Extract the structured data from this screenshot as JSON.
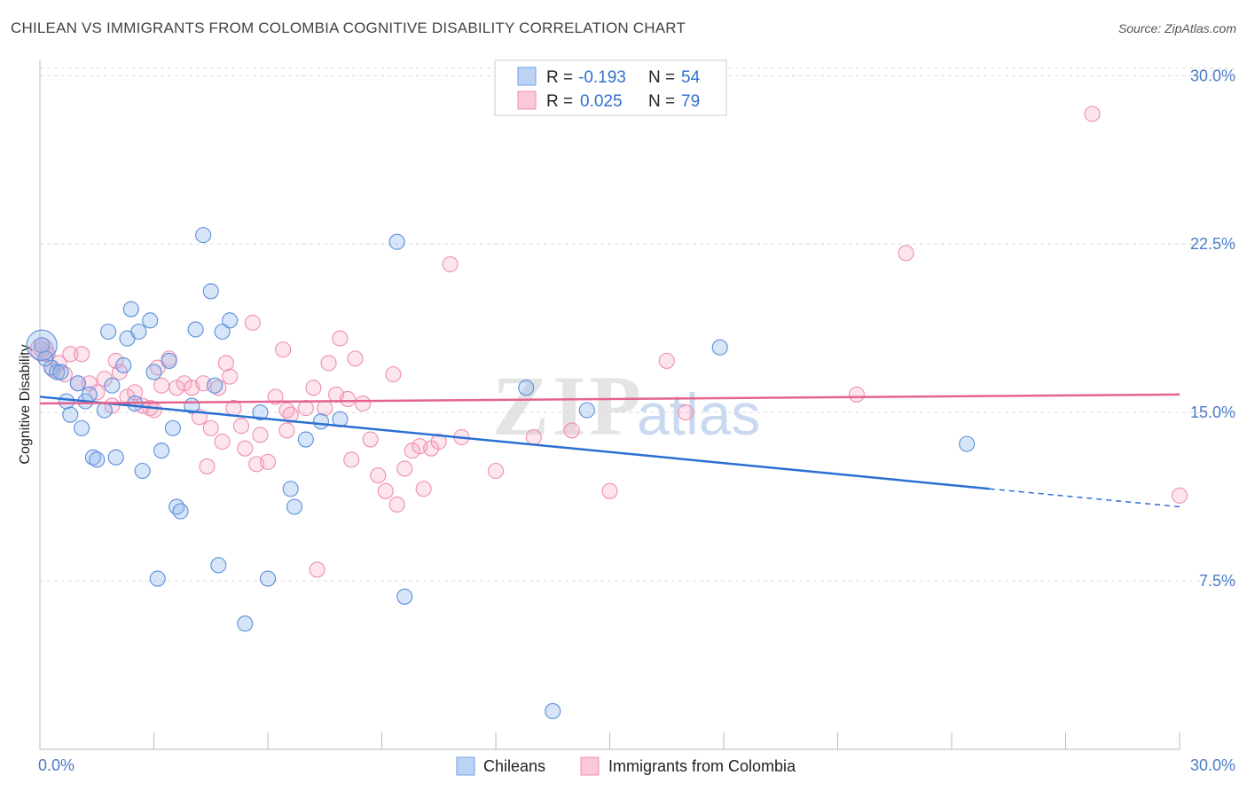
{
  "title": "CHILEAN VS IMMIGRANTS FROM COLOMBIA COGNITIVE DISABILITY CORRELATION CHART",
  "source": "Source: ZipAtlas.com",
  "watermark": {
    "zip": "ZIP",
    "atlas": "atlas"
  },
  "legend": {
    "r_label": "R =",
    "n_label": "N =",
    "series1": {
      "r": "-0.193",
      "n": "54"
    },
    "series2": {
      "r": "0.025",
      "n": "79"
    }
  },
  "bottom_legend": [
    "Chileans",
    "Immigrants from Colombia"
  ],
  "chart_data": {
    "type": "scatter",
    "title": "CHILEAN VS IMMIGRANTS FROM COLOMBIA COGNITIVE DISABILITY CORRELATION CHART",
    "xlabel": "",
    "ylabel": "Cognitive Disability",
    "xlim": [
      0,
      30
    ],
    "ylim": [
      0,
      31
    ],
    "y_ticks": [
      7.5,
      15.0,
      22.5,
      30.0
    ],
    "y_tick_labels": [
      "7.5%",
      "15.0%",
      "22.5%",
      "30.0%"
    ],
    "x_tick_labels": [
      "0.0%",
      "30.0%"
    ],
    "colors": {
      "chileans": "#6fa0e8",
      "colombia": "#f08fb0",
      "blue_line": "#2a6fd2",
      "pink_line": "#e4648f"
    },
    "series": [
      {
        "name": "Chileans",
        "R": -0.193,
        "N": 54,
        "trend": {
          "x": [
            0,
            25
          ],
          "y": [
            15.7,
            11.6
          ],
          "dashed_to": [
            30,
            10.8
          ]
        },
        "points": [
          [
            0.05,
            18.0
          ],
          [
            0.15,
            17.4
          ],
          [
            0.3,
            17.0
          ],
          [
            0.45,
            16.8
          ],
          [
            0.55,
            16.8
          ],
          [
            0.7,
            15.5
          ],
          [
            0.8,
            14.9
          ],
          [
            1.0,
            16.3
          ],
          [
            1.1,
            14.3
          ],
          [
            1.2,
            15.5
          ],
          [
            1.3,
            15.8
          ],
          [
            1.4,
            13.0
          ],
          [
            1.5,
            12.9
          ],
          [
            1.7,
            15.1
          ],
          [
            1.8,
            18.6
          ],
          [
            1.9,
            16.2
          ],
          [
            2.0,
            13.0
          ],
          [
            2.2,
            17.1
          ],
          [
            2.3,
            18.3
          ],
          [
            2.4,
            19.6
          ],
          [
            2.5,
            15.4
          ],
          [
            2.6,
            18.6
          ],
          [
            2.7,
            12.4
          ],
          [
            2.9,
            19.1
          ],
          [
            3.0,
            16.8
          ],
          [
            3.1,
            7.6
          ],
          [
            3.2,
            13.3
          ],
          [
            3.4,
            17.3
          ],
          [
            3.5,
            14.3
          ],
          [
            3.6,
            10.8
          ],
          [
            3.7,
            10.6
          ],
          [
            4.0,
            15.3
          ],
          [
            4.1,
            18.7
          ],
          [
            4.3,
            22.9
          ],
          [
            4.5,
            20.4
          ],
          [
            4.6,
            16.2
          ],
          [
            4.7,
            8.2
          ],
          [
            4.8,
            18.6
          ],
          [
            5.0,
            19.1
          ],
          [
            5.4,
            5.6
          ],
          [
            5.8,
            15.0
          ],
          [
            6.0,
            7.6
          ],
          [
            6.6,
            11.6
          ],
          [
            6.7,
            10.8
          ],
          [
            7.0,
            13.8
          ],
          [
            7.4,
            14.6
          ],
          [
            7.9,
            14.7
          ],
          [
            9.4,
            22.6
          ],
          [
            9.6,
            6.8
          ],
          [
            12.8,
            16.1
          ],
          [
            13.5,
            1.7
          ],
          [
            14.4,
            15.1
          ],
          [
            17.9,
            17.9
          ],
          [
            24.4,
            13.6
          ]
        ]
      },
      {
        "name": "Immigrants from Colombia",
        "R": 0.025,
        "N": 79,
        "trend": {
          "x": [
            0,
            30
          ],
          "y": [
            15.4,
            15.8
          ]
        },
        "points": [
          [
            0.05,
            17.8
          ],
          [
            0.2,
            17.6
          ],
          [
            0.35,
            16.9
          ],
          [
            0.5,
            17.2
          ],
          [
            0.65,
            16.7
          ],
          [
            0.8,
            17.6
          ],
          [
            1.0,
            16.3
          ],
          [
            1.1,
            17.6
          ],
          [
            1.3,
            16.3
          ],
          [
            1.5,
            15.9
          ],
          [
            1.7,
            16.5
          ],
          [
            1.9,
            15.3
          ],
          [
            2.1,
            16.8
          ],
          [
            2.3,
            15.7
          ],
          [
            2.5,
            15.9
          ],
          [
            2.7,
            15.3
          ],
          [
            2.9,
            15.2
          ],
          [
            3.1,
            17.0
          ],
          [
            3.2,
            16.2
          ],
          [
            3.4,
            17.4
          ],
          [
            3.6,
            16.1
          ],
          [
            3.8,
            16.3
          ],
          [
            4.0,
            16.1
          ],
          [
            4.2,
            14.8
          ],
          [
            4.3,
            16.3
          ],
          [
            4.4,
            12.6
          ],
          [
            4.5,
            14.3
          ],
          [
            4.7,
            16.1
          ],
          [
            4.9,
            17.2
          ],
          [
            5.0,
            16.6
          ],
          [
            5.1,
            15.2
          ],
          [
            5.3,
            14.4
          ],
          [
            5.4,
            13.4
          ],
          [
            5.6,
            19.0
          ],
          [
            5.7,
            12.7
          ],
          [
            5.8,
            14.0
          ],
          [
            6.0,
            12.8
          ],
          [
            6.2,
            15.7
          ],
          [
            6.4,
            17.8
          ],
          [
            6.5,
            14.2
          ],
          [
            6.6,
            14.9
          ],
          [
            7.0,
            15.2
          ],
          [
            7.2,
            16.1
          ],
          [
            7.3,
            8.0
          ],
          [
            7.5,
            15.2
          ],
          [
            7.6,
            17.2
          ],
          [
            7.8,
            15.8
          ],
          [
            7.9,
            18.3
          ],
          [
            8.1,
            15.6
          ],
          [
            8.2,
            12.9
          ],
          [
            8.3,
            17.4
          ],
          [
            8.5,
            15.4
          ],
          [
            8.7,
            13.8
          ],
          [
            8.9,
            12.2
          ],
          [
            9.1,
            11.5
          ],
          [
            9.3,
            16.7
          ],
          [
            9.4,
            10.9
          ],
          [
            9.6,
            12.5
          ],
          [
            9.8,
            13.3
          ],
          [
            10.0,
            13.5
          ],
          [
            10.1,
            11.6
          ],
          [
            10.3,
            13.4
          ],
          [
            10.5,
            13.7
          ],
          [
            10.8,
            21.6
          ],
          [
            11.1,
            13.9
          ],
          [
            12.0,
            12.4
          ],
          [
            13.0,
            13.9
          ],
          [
            14.0,
            14.2
          ],
          [
            15.0,
            11.5
          ],
          [
            16.5,
            17.3
          ],
          [
            17.0,
            15.0
          ],
          [
            21.5,
            15.8
          ],
          [
            22.8,
            22.1
          ],
          [
            27.7,
            28.3
          ],
          [
            30.0,
            11.3
          ],
          [
            6.5,
            15.1
          ],
          [
            2.0,
            17.3
          ],
          [
            3.0,
            15.1
          ],
          [
            4.8,
            13.7
          ]
        ]
      }
    ]
  }
}
